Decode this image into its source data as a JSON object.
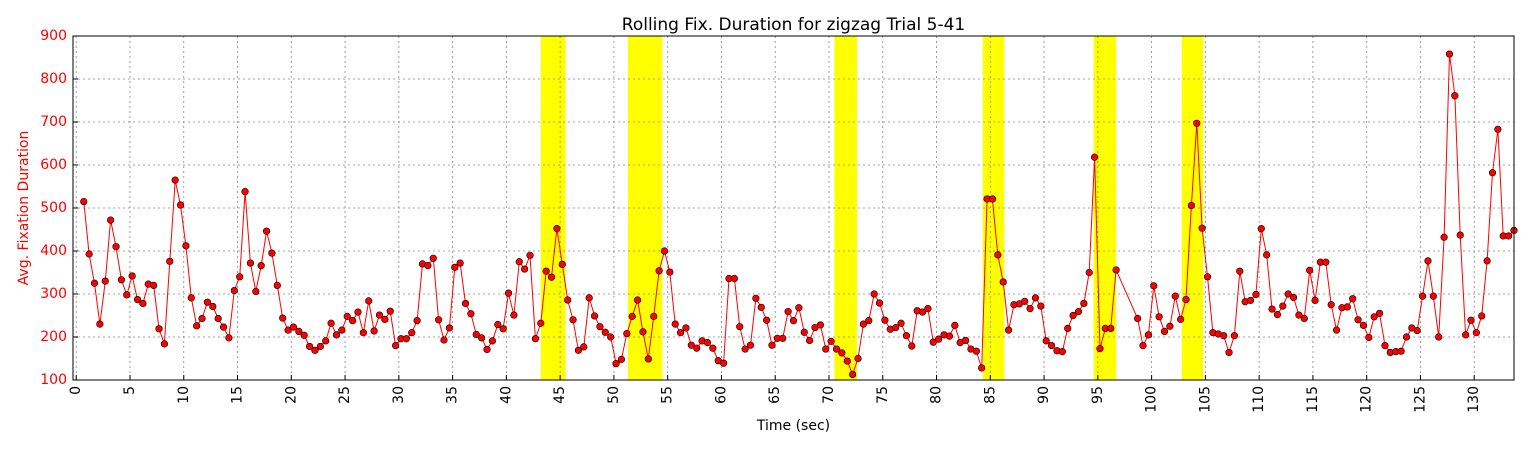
{
  "chart_data": {
    "type": "line",
    "title": "Rolling Fix. Duration for zigzag Trial 5-41",
    "xlabel": "Time (sec)",
    "ylabel": "Avg. Fixation Duration",
    "xlim": [
      -0.3,
      133.7
    ],
    "ylim": [
      100,
      900
    ],
    "grid": true,
    "x_ticks": [
      "0",
      "5",
      "10",
      "15",
      "20",
      "25",
      "30",
      "35",
      "40",
      "45",
      "50",
      "55",
      "60",
      "65",
      "70",
      "75",
      "80",
      "85",
      "90",
      "95",
      "100",
      "105",
      "110",
      "115",
      "120",
      "125",
      "130"
    ],
    "y_ticks": [
      "100",
      "200",
      "300",
      "400",
      "500",
      "600",
      "700",
      "800",
      "900"
    ],
    "colors": {
      "line": "#ff0000",
      "marker": "#ff0000",
      "highlight": "#ffff00",
      "ytick": "#ff0000"
    },
    "highlight_intervals": [
      [
        43.2,
        45.5
      ],
      [
        51.3,
        54.5
      ],
      [
        70.5,
        72.6
      ],
      [
        84.3,
        86.3
      ],
      [
        94.6,
        96.7
      ],
      [
        102.8,
        104.8
      ]
    ],
    "series": [
      {
        "x": [
          0.7,
          1.2,
          1.7,
          2.2,
          2.7,
          3.2,
          3.7,
          4.2,
          4.7,
          5.2,
          5.7,
          6.2,
          6.7,
          7.2,
          7.7,
          8.2,
          8.7,
          9.2,
          9.7,
          10.2,
          10.7,
          11.2,
          11.7,
          12.2,
          12.7,
          13.2,
          13.7,
          14.2,
          14.7,
          15.2,
          15.7,
          16.2,
          16.7,
          17.2,
          17.7,
          18.2,
          18.7,
          19.2,
          19.7,
          20.2,
          20.7,
          21.2,
          21.7,
          22.2,
          22.7,
          23.2,
          23.7,
          24.2,
          24.7,
          25.2,
          25.7,
          26.2,
          26.7,
          27.2,
          27.7,
          28.2,
          28.7,
          29.2,
          29.7,
          30.2,
          30.7,
          31.2,
          31.7,
          32.2,
          32.7,
          33.2,
          33.7,
          34.2,
          34.7,
          35.2,
          35.7,
          36.2,
          36.7,
          37.2,
          37.7,
          38.2,
          38.7,
          39.2,
          39.7,
          40.2,
          40.7,
          41.2,
          41.7,
          42.2,
          42.7,
          43.2,
          43.7,
          44.2,
          44.7,
          45.2,
          45.7,
          46.2,
          46.7,
          47.2,
          47.7,
          48.2,
          48.7,
          49.2,
          49.7,
          50.2,
          50.7,
          51.2,
          51.7,
          52.2,
          52.7,
          53.2,
          53.7,
          54.2,
          54.7,
          55.2,
          55.7,
          56.2,
          56.7,
          57.2,
          57.7,
          58.2,
          58.7,
          59.2,
          59.7,
          60.2,
          60.7,
          61.2,
          61.7,
          62.2,
          62.7,
          63.2,
          63.7,
          64.2,
          64.7,
          65.2,
          65.7,
          66.2,
          66.7,
          67.2,
          67.7,
          68.2,
          68.7,
          69.2,
          69.7,
          70.2,
          70.7,
          71.2,
          71.7,
          72.2,
          72.7,
          73.2,
          73.7,
          74.2,
          74.7,
          75.2,
          75.7,
          76.2,
          76.7,
          77.2,
          77.7,
          78.2,
          78.7,
          79.2,
          79.7,
          80.2,
          80.7,
          81.2,
          81.7,
          82.2,
          82.7,
          83.2,
          83.7,
          84.2,
          84.7,
          85.2,
          85.7,
          86.2,
          86.7,
          87.2,
          87.7,
          88.2,
          88.7,
          89.2,
          89.7,
          90.2,
          90.7,
          91.2,
          91.7,
          92.2,
          92.7,
          93.2,
          93.7,
          94.2,
          94.7,
          95.2,
          95.7,
          96.2,
          96.7,
          98.7,
          99.2,
          99.7,
          100.2,
          100.7,
          101.2,
          101.7,
          102.2,
          102.7,
          103.2,
          103.7,
          104.2,
          104.7,
          105.2,
          105.7,
          106.2,
          106.7,
          107.2,
          107.7,
          108.2,
          108.7,
          109.2,
          109.7,
          110.2,
          110.7,
          111.2,
          111.7,
          112.2,
          112.7,
          113.2,
          113.7,
          114.2,
          114.7,
          115.2,
          115.7,
          116.2,
          116.7,
          117.2,
          117.7,
          118.2,
          118.7,
          119.2,
          119.7,
          120.2,
          120.7,
          121.2,
          121.7,
          122.2,
          122.7,
          123.2,
          123.7,
          124.2,
          124.7,
          125.2,
          125.7,
          126.2,
          126.7,
          127.2,
          127.7,
          128.2,
          128.7,
          129.2,
          129.7,
          130.2,
          130.7,
          131.2,
          131.7,
          132.2,
          132.7,
          133.2,
          133.7
        ],
        "y": [
          515,
          393,
          325,
          230,
          330,
          472,
          410,
          333,
          298,
          342,
          287,
          278,
          323,
          320,
          219,
          184,
          376,
          565,
          507,
          412,
          291,
          226,
          243,
          281,
          271,
          243,
          223,
          198,
          308,
          340,
          538,
          372,
          306,
          366,
          446,
          395,
          320,
          244,
          216,
          223,
          213,
          204,
          178,
          169,
          178,
          191,
          232,
          205,
          216,
          248,
          238,
          258,
          210,
          284,
          214,
          251,
          241,
          260,
          180,
          196,
          196,
          210,
          238,
          370,
          366,
          383,
          240,
          193,
          221,
          362,
          372,
          278,
          254,
          206,
          198,
          171,
          191,
          229,
          219,
          302,
          251,
          375,
          358,
          390,
          196,
          232,
          353,
          339,
          452,
          369,
          286,
          240,
          169,
          177,
          291,
          249,
          224,
          211,
          200,
          138,
          148,
          208,
          248,
          286,
          212,
          149,
          248,
          354,
          400,
          351,
          230,
          210,
          221,
          181,
          174,
          191,
          187,
          174,
          145,
          139,
          336,
          336,
          224,
          172,
          181,
          290,
          269,
          239,
          181,
          197,
          197,
          259,
          238,
          268,
          211,
          192,
          222,
          228,
          172,
          190,
          172,
          163,
          144,
          113,
          150,
          230,
          238,
          300,
          279,
          239,
          218,
          222,
          232,
          203,
          179,
          261,
          258,
          266,
          188,
          195,
          205,
          202,
          227,
          187,
          192,
          172,
          167,
          128,
          521,
          521,
          391,
          328,
          216,
          275,
          277,
          283,
          266,
          291,
          272,
          191,
          180,
          168,
          166,
          220,
          250,
          259,
          278,
          350,
          618,
          173,
          220,
          220,
          356,
          243,
          180,
          205,
          319,
          247,
          213,
          225,
          295,
          241,
          287,
          506,
          697,
          453,
          340,
          210,
          207,
          203,
          164,
          203,
          353,
          282,
          285,
          299,
          452,
          391,
          265,
          252,
          272,
          300,
          292,
          251,
          243,
          355,
          285,
          374,
          374,
          275,
          216,
          268,
          270,
          289,
          240,
          227,
          199,
          247,
          255,
          180,
          164,
          166,
          167,
          200,
          221,
          215,
          295,
          377,
          295,
          200,
          432,
          858,
          761,
          437,
          205,
          239,
          210,
          249,
          377,
          582,
          683,
          435,
          435,
          448
        ]
      }
    ]
  }
}
